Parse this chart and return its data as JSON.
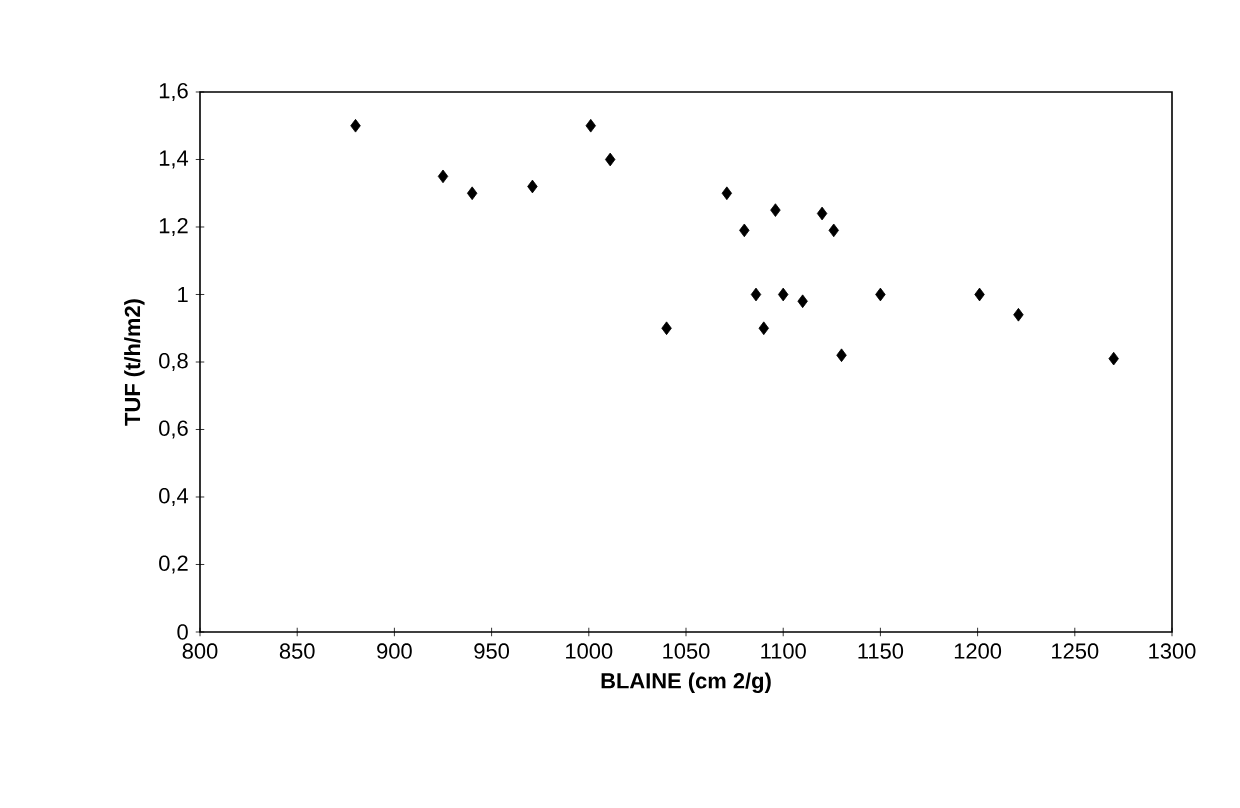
{
  "chart_data": {
    "type": "scatter",
    "xlabel": "BLAINE (cm 2/g)",
    "ylabel": "TUF (t/h/m2)",
    "x": [
      880,
      925,
      940,
      971,
      1001,
      1011,
      1040,
      1071,
      1080,
      1086,
      1090,
      1096,
      1100,
      1110,
      1120,
      1126,
      1130,
      1150,
      1201,
      1221,
      1270
    ],
    "series": [
      {
        "color": "#000000",
        "values": [
          1.5,
          1.35,
          1.3,
          1.32,
          1.5,
          1.4,
          0.9,
          1.3,
          1.19,
          1.0,
          0.9,
          1.25,
          1.0,
          0.98,
          1.24,
          1.19,
          0.82,
          1.0,
          1.0,
          0.94,
          0.81
        ]
      }
    ],
    "marker": "diamond",
    "xlim": [
      800,
      1300
    ],
    "xticks": [
      800,
      850,
      900,
      950,
      1000,
      1050,
      1100,
      1150,
      1200,
      1250,
      1300
    ],
    "ylim": [
      0,
      1.6
    ],
    "yticks": [
      0,
      {
        "value": 0.2,
        "label": "0,2"
      },
      {
        "value": 0.4,
        "label": "0,4"
      },
      {
        "value": 0.6,
        "label": "0,6"
      },
      {
        "value": 0.8,
        "label": "0,8"
      },
      1,
      {
        "value": 1.2,
        "label": "1,2"
      },
      {
        "value": 1.4,
        "label": "1,4"
      },
      {
        "value": 1.6,
        "label": "1,6"
      }
    ]
  }
}
